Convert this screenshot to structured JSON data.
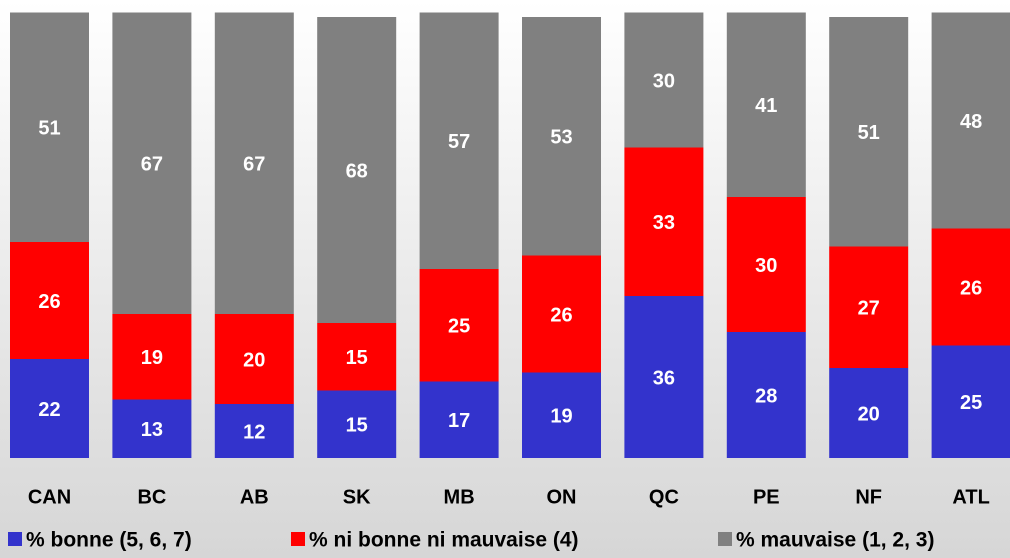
{
  "chart_data": {
    "type": "stacked_bar",
    "categories": [
      "CAN",
      "BC",
      "AB",
      "SK",
      "MB",
      "ON",
      "QC",
      "PE",
      "NF",
      "ATL"
    ],
    "series": [
      {
        "name": "% bonne (5, 6, 7)",
        "color": "#3333cc",
        "values": [
          22,
          13,
          12,
          15,
          17,
          19,
          36,
          28,
          20,
          25
        ]
      },
      {
        "name": "% ni bonne ni mauvaise (4)",
        "color": "#ff0000",
        "values": [
          26,
          19,
          20,
          15,
          25,
          26,
          33,
          30,
          27,
          26
        ]
      },
      {
        "name": "% mauvaise (1, 2, 3)",
        "color": "#808080",
        "values": [
          51,
          67,
          67,
          68,
          57,
          53,
          30,
          41,
          51,
          48
        ]
      }
    ],
    "ylim": [
      0,
      100
    ],
    "legend": "bottom"
  }
}
